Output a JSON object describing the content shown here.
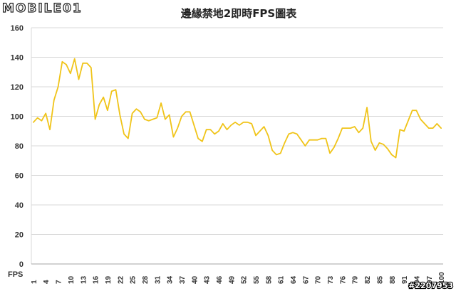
{
  "logo": {
    "text": "MOBILE01"
  },
  "watermark": "#2207953",
  "chart_data": {
    "type": "line",
    "title": "邊緣禁地2即時FPS圖表",
    "xlabel": "FPS",
    "ylabel": "",
    "ylim": [
      0,
      160
    ],
    "y_ticks": [
      0,
      20,
      40,
      60,
      80,
      100,
      120,
      140,
      160
    ],
    "x": [
      1,
      2,
      3,
      4,
      5,
      6,
      7,
      8,
      9,
      10,
      11,
      12,
      13,
      14,
      15,
      16,
      17,
      18,
      19,
      20,
      21,
      22,
      23,
      24,
      25,
      26,
      27,
      28,
      29,
      30,
      31,
      32,
      33,
      34,
      35,
      36,
      37,
      38,
      39,
      40,
      41,
      42,
      43,
      44,
      45,
      46,
      47,
      48,
      49,
      50,
      51,
      52,
      53,
      54,
      55,
      56,
      57,
      58,
      59,
      60,
      61,
      62,
      63,
      64,
      65,
      66,
      67,
      68,
      69,
      70,
      71,
      72,
      73,
      74,
      75,
      76,
      77,
      78,
      79,
      80,
      81,
      82,
      83,
      84,
      85,
      86,
      87,
      88,
      89,
      90,
      91,
      92,
      93,
      94,
      95,
      96,
      97,
      98,
      99,
      100
    ],
    "x_ticks": [
      1,
      4,
      7,
      10,
      13,
      16,
      19,
      22,
      25,
      28,
      31,
      34,
      37,
      40,
      43,
      46,
      49,
      52,
      55,
      58,
      61,
      64,
      67,
      70,
      73,
      76,
      79,
      82,
      85,
      88,
      91,
      94,
      97,
      100
    ],
    "series": [
      {
        "color": "#f0c419",
        "values": [
          96,
          99,
          97,
          102,
          91,
          111,
          120,
          137,
          135,
          129,
          139,
          125,
          136,
          136,
          133,
          98,
          108,
          113,
          104,
          117,
          118,
          101,
          88,
          85,
          102,
          105,
          103,
          98,
          97,
          98,
          99,
          109,
          98,
          101,
          86,
          92,
          100,
          103,
          103,
          94,
          85,
          83,
          91,
          91,
          88,
          90,
          95,
          91,
          94,
          96,
          94,
          96,
          96,
          95,
          87,
          90,
          93,
          87,
          77,
          74,
          75,
          82,
          88,
          89,
          88,
          84,
          80,
          84,
          84,
          84,
          85,
          85,
          75,
          79,
          85,
          92,
          92,
          92,
          93,
          89,
          92,
          106,
          83,
          77,
          82,
          81,
          78,
          74,
          72,
          91,
          90,
          97,
          104,
          104,
          98,
          95,
          92,
          92,
          95,
          92
        ]
      }
    ],
    "grid": true,
    "gridline_color": "#d9d9d9",
    "axis_color": "#a6a6a6",
    "legend": "none"
  }
}
